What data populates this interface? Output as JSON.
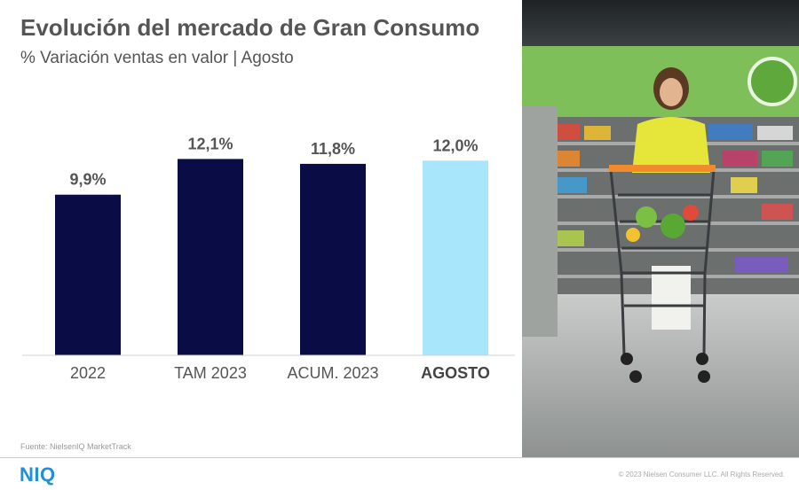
{
  "header": {
    "title": "Evolución del mercado de Gran Consumo",
    "subtitle": "% Variación ventas en valor | Agosto"
  },
  "footer": {
    "source": "Fuente: NielsenIQ MarketTrack",
    "logo": "NIQ",
    "copyright": "© 2023 Nielsen Consumer LLC. All Rights Reserved."
  },
  "colors": {
    "bar_primary": "#0a0d45",
    "bar_highlight": "#a8e6fc",
    "brand": "#1f8fd6"
  },
  "photo": {
    "icon": "shopper-photo"
  },
  "chart_data": {
    "type": "bar",
    "categories": [
      "2022",
      "TAM 2023",
      "ACUM. 2023",
      "AGOSTO"
    ],
    "values": [
      9.9,
      12.1,
      11.8,
      12.0
    ],
    "data_labels": [
      "9,9%",
      "12,1%",
      "11,8%",
      "12,0%"
    ],
    "highlight_index": 3,
    "ylim": [
      0,
      16
    ],
    "grid": false,
    "legend": "none"
  }
}
